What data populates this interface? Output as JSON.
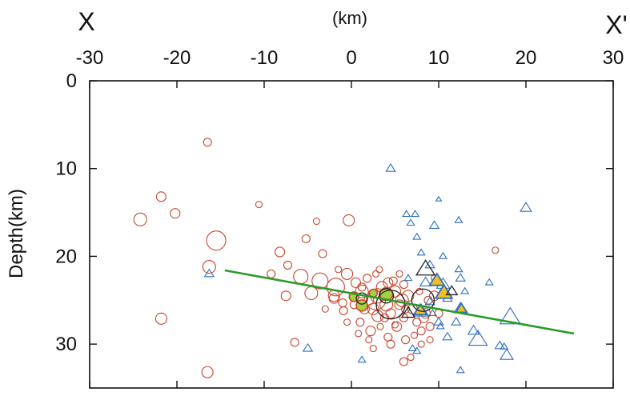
{
  "chart_data": {
    "type": "scatter",
    "title_left": "X",
    "title_right": "X'",
    "xlabel": "(km)",
    "ylabel": "Depth(km)",
    "xlim": [
      -30,
      30
    ],
    "ylim": [
      0,
      35
    ],
    "x_ticks": [
      "-30",
      "-20",
      "-10",
      "0",
      "10",
      "20",
      "30"
    ],
    "y_ticks": [
      "0",
      "10",
      "20",
      "30"
    ],
    "colors": {
      "circle": "#c8462e",
      "triangle": "#2f6fc0",
      "fit_line": "#2a9b2a",
      "filled_circle": "#a8d040",
      "filled_triangle": "#f0c020",
      "dark": "#222222"
    },
    "fit_line": {
      "x": [
        -14.5,
        25.5
      ],
      "y": [
        21.6,
        28.8
      ]
    },
    "series": [
      {
        "marker": "circle",
        "color": "#c8462e",
        "points": [
          [
            -16.5,
            7.0,
            5
          ],
          [
            -21.8,
            13.2,
            6
          ],
          [
            -20.2,
            15.1,
            6
          ],
          [
            -24.2,
            15.8,
            8
          ],
          [
            -10.6,
            14.1,
            4
          ],
          [
            -15.5,
            18.2,
            12
          ],
          [
            -16.3,
            21.2,
            8
          ],
          [
            -21.8,
            27.1,
            7
          ],
          [
            -16.5,
            33.2,
            7
          ],
          [
            -7.3,
            21.0,
            5
          ],
          [
            -8.2,
            19.5,
            6
          ],
          [
            -5.2,
            18.0,
            5
          ],
          [
            -3.3,
            19.7,
            5
          ],
          [
            -0.3,
            15.9,
            7
          ],
          [
            -4.0,
            16.0,
            4
          ],
          [
            -5.8,
            22.3,
            9
          ],
          [
            -3.6,
            22.8,
            10
          ],
          [
            -4.6,
            24.2,
            8
          ],
          [
            -1.8,
            23.5,
            11
          ],
          [
            -0.5,
            22.0,
            7
          ],
          [
            -2.0,
            24.8,
            6
          ],
          [
            -7.5,
            24.5,
            6
          ],
          [
            -9.2,
            22.0,
            5
          ],
          [
            -0.9,
            26.2,
            5
          ],
          [
            -2.0,
            24.5,
            7
          ],
          [
            -0.5,
            27.5,
            4
          ],
          [
            -6.5,
            29.8,
            5
          ],
          [
            -1.5,
            21.5,
            4
          ],
          [
            0.5,
            23.0,
            6
          ],
          [
            1.2,
            24.0,
            8
          ],
          [
            2.0,
            25.0,
            6
          ],
          [
            2.5,
            26.0,
            7
          ],
          [
            3.0,
            24.5,
            9
          ],
          [
            3.5,
            23.5,
            7
          ],
          [
            4.0,
            25.5,
            8
          ],
          [
            4.5,
            26.5,
            6
          ],
          [
            5.0,
            24.0,
            7
          ],
          [
            5.5,
            25.5,
            6
          ],
          [
            6.0,
            27.0,
            5
          ],
          [
            6.5,
            24.5,
            7
          ],
          [
            7.0,
            26.0,
            6
          ],
          [
            7.5,
            27.5,
            5
          ],
          [
            8.0,
            28.5,
            5
          ],
          [
            8.5,
            26.5,
            6
          ],
          [
            9.0,
            28.0,
            5
          ],
          [
            9.5,
            24.5,
            6
          ],
          [
            10.0,
            26.5,
            5
          ],
          [
            1.0,
            27.5,
            5
          ],
          [
            2.2,
            28.5,
            6
          ],
          [
            3.3,
            28.0,
            4
          ],
          [
            4.2,
            29.2,
            5
          ],
          [
            5.2,
            28.0,
            6
          ],
          [
            6.2,
            29.5,
            5
          ],
          [
            7.2,
            29.0,
            4
          ],
          [
            0.3,
            25.5,
            5
          ],
          [
            1.8,
            22.5,
            5
          ],
          [
            2.8,
            22.0,
            4
          ],
          [
            4.8,
            22.8,
            5
          ],
          [
            3.2,
            21.5,
            4
          ],
          [
            6.0,
            23.2,
            5
          ],
          [
            5.0,
            27.8,
            4
          ],
          [
            8.8,
            25.0,
            5
          ],
          [
            7.8,
            24.0,
            4
          ],
          [
            2.5,
            30.5,
            4
          ],
          [
            4.5,
            30.0,
            5
          ],
          [
            6.8,
            31.5,
            4
          ],
          [
            3.8,
            27.0,
            5
          ],
          [
            1.5,
            26.0,
            6
          ],
          [
            0.8,
            28.8,
            4
          ],
          [
            9.5,
            22.5,
            4
          ],
          [
            6.0,
            32.0,
            5
          ],
          [
            16.5,
            19.3,
            4
          ],
          [
            5.5,
            22.0,
            4
          ],
          [
            8.0,
            30.0,
            4
          ],
          [
            2.0,
            29.5,
            4
          ],
          [
            10.5,
            24.0,
            4
          ],
          [
            -1.0,
            25.3,
            5
          ],
          [
            6.2,
            26.0,
            5
          ],
          [
            3.0,
            26.8,
            7
          ],
          [
            5.8,
            25.0,
            8
          ],
          [
            8.3,
            27.0,
            6
          ],
          [
            1.2,
            23.5,
            5
          ],
          [
            4.2,
            23.0,
            6
          ],
          [
            2.8,
            25.0,
            12
          ],
          [
            9.0,
            29.5,
            4
          ],
          [
            -3.0,
            26.0,
            4
          ]
        ]
      },
      {
        "marker": "circle-dark",
        "color": "#222222",
        "points": [
          [
            4.5,
            25.5,
            18
          ],
          [
            8.2,
            25.0,
            14
          ],
          [
            4.0,
            24.5,
            9
          ],
          [
            1.2,
            24.8,
            7
          ]
        ]
      },
      {
        "marker": "circle-filled",
        "color": "#a8d040",
        "points": [
          [
            0.3,
            24.6,
            6
          ],
          [
            1.2,
            25.6,
            7
          ],
          [
            4.0,
            24.3,
            8
          ],
          [
            2.5,
            24.2,
            5
          ]
        ]
      },
      {
        "marker": "triangle",
        "color": "#2f6fc0",
        "points": [
          [
            4.5,
            10.0,
            5
          ],
          [
            10.0,
            13.5,
            3
          ],
          [
            20.0,
            14.5,
            6
          ],
          [
            6.3,
            15.2,
            4
          ],
          [
            7.3,
            15.2,
            4
          ],
          [
            6.8,
            16.2,
            4
          ],
          [
            9.5,
            16.5,
            5
          ],
          [
            12.3,
            15.9,
            4
          ],
          [
            7.5,
            17.8,
            4
          ],
          [
            8.0,
            19.6,
            4
          ],
          [
            10.5,
            20.0,
            4
          ],
          [
            9.0,
            21.0,
            5
          ],
          [
            12.3,
            21.5,
            4
          ],
          [
            12.5,
            22.5,
            5
          ],
          [
            15.8,
            23.0,
            4
          ],
          [
            6.5,
            22.5,
            4
          ],
          [
            8.5,
            23.0,
            6
          ],
          [
            10.5,
            23.2,
            7
          ],
          [
            11.0,
            24.8,
            5
          ],
          [
            12.5,
            26.0,
            7
          ],
          [
            10.0,
            27.5,
            5
          ],
          [
            8.0,
            26.3,
            8
          ],
          [
            9.3,
            26.5,
            4
          ],
          [
            10.2,
            28.0,
            4
          ],
          [
            11.0,
            29.2,
            5
          ],
          [
            14.0,
            28.5,
            6
          ],
          [
            14.5,
            29.5,
            10
          ],
          [
            17.0,
            30.2,
            5
          ],
          [
            17.5,
            30.3,
            4
          ],
          [
            17.8,
            31.3,
            7
          ],
          [
            18.2,
            27.0,
            11
          ],
          [
            12.5,
            33.0,
            4
          ],
          [
            7.0,
            30.5,
            4
          ],
          [
            7.5,
            30.8,
            4
          ],
          [
            1.2,
            31.8,
            4
          ],
          [
            -5.0,
            30.5,
            5
          ],
          [
            -16.3,
            22.0,
            5
          ],
          [
            9.0,
            25.2,
            5
          ],
          [
            12.0,
            27.5,
            5
          ],
          [
            13.0,
            24.0,
            4
          ]
        ]
      },
      {
        "marker": "triangle-dark",
        "color": "#222222",
        "points": [
          [
            8.5,
            21.5,
            10
          ],
          [
            6.5,
            26.5,
            7
          ],
          [
            11.5,
            24.0,
            6
          ]
        ]
      },
      {
        "marker": "triangle-filled",
        "color": "#f0c020",
        "points": [
          [
            9.8,
            22.8,
            8
          ],
          [
            10.6,
            24.2,
            9
          ],
          [
            7.9,
            26.2,
            7
          ],
          [
            12.6,
            26.0,
            6
          ]
        ]
      }
    ]
  }
}
